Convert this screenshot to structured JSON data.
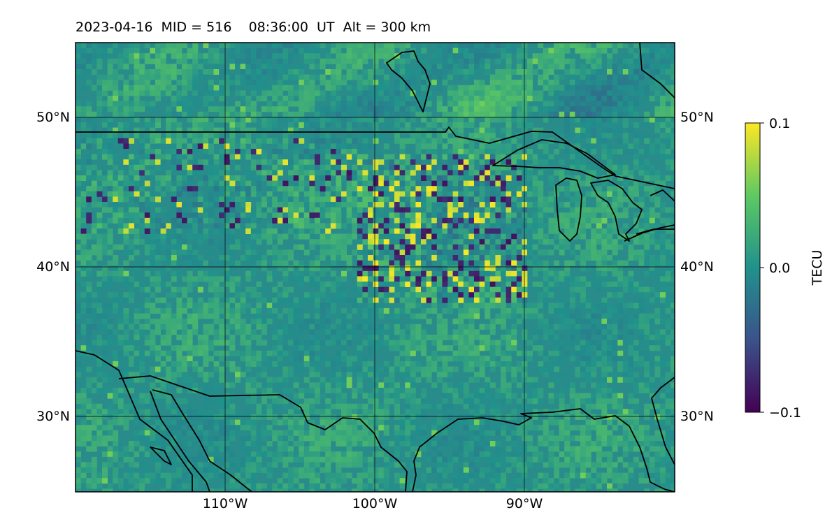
{
  "title": {
    "date": "2023-04-16",
    "mid": "MID = 516",
    "time": "08:36:00  UT",
    "alt": "Alt = 300 km"
  },
  "map": {
    "lon_range": [
      -120,
      -80
    ],
    "lat_range": [
      25,
      55
    ],
    "lat_gridlines": [
      30,
      40,
      50
    ],
    "lon_gridlines": [
      -110,
      -100,
      -90
    ],
    "lat_labels": [
      "30°N",
      "40°N",
      "50°N"
    ],
    "lon_labels": [
      "110°W",
      "100°W",
      "90°W"
    ],
    "background_color": "#2a8c8a",
    "coastline_color": "#000000"
  },
  "colorbar": {
    "label": "TECU",
    "vmin": -0.1,
    "vmax": 0.1,
    "ticks": [
      "0.1",
      "0.0",
      "−0.1"
    ],
    "colormap": [
      "#440154",
      "#3b528b",
      "#21918c",
      "#5ec962",
      "#fde725"
    ]
  },
  "features": [
    "viridis TEC perturbation field",
    "strong mottled perturbation over central US near 100W-92W, 39-47N",
    "speckled perturbations across northern plains 43-48N"
  ]
}
